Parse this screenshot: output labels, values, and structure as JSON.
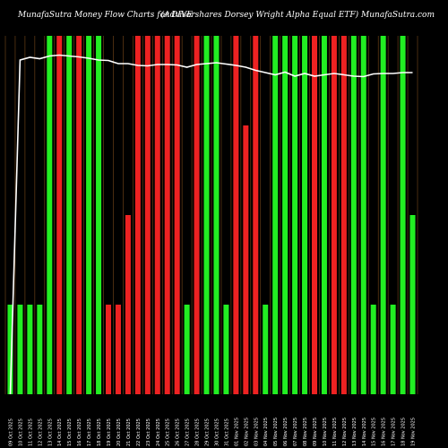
{
  "chart_data": {
    "type": "bar",
    "title_left": "MunafaSutra Money Flow Charts for DIVE",
    "title_right": "(Advisorshares Dorsey Wright Alpha Equal ETF) MunafaSutra.com",
    "grid": true,
    "colors": {
      "up": "#22ee22",
      "down": "#ee2222",
      "line": "#ffffff",
      "grid": "#7a4a1a",
      "bg": "#000000"
    },
    "categories": [
      "09 Oct 2025",
      "10 Oct 2025",
      "11 Oct 2025",
      "12 Oct 2025",
      "13 Oct 2025",
      "14 Oct 2025",
      "15 Oct 2025",
      "16 Oct 2025",
      "17 Oct 2025",
      "18 Oct 2025",
      "19 Oct 2025",
      "20 Oct 2025",
      "21 Oct 2025",
      "22 Oct 2025",
      "23 Oct 2025",
      "24 Oct 2025",
      "25 Oct 2025",
      "26 Oct 2025",
      "27 Oct 2025",
      "28 Oct 2025",
      "29 Oct 2025",
      "30 Oct 2025",
      "31 Oct 2025",
      "01 Nov 2025",
      "02 Nov 2025",
      "03 Nov 2025",
      "04 Nov 2025",
      "05 Nov 2025",
      "06 Nov 2025",
      "07 Nov 2025",
      "08 Nov 2025",
      "09 Nov 2025",
      "10 Nov 2025",
      "11 Nov 2025",
      "12 Nov 2025",
      "13 Nov 2025",
      "14 Nov 2025",
      "15 Nov 2025",
      "16 Nov 2025",
      "17 Nov 2025",
      "18 Nov 2025",
      "19 Nov 2025"
    ],
    "series": [
      {
        "values": [
          1,
          1,
          1,
          1,
          4,
          4,
          4,
          4,
          4,
          4,
          1,
          1,
          2,
          4,
          4,
          4,
          4,
          4,
          1,
          4,
          4,
          4,
          1,
          4,
          3,
          4,
          1,
          4,
          4,
          4,
          4,
          4,
          4,
          4,
          4,
          4,
          4,
          1,
          4,
          1,
          4,
          2
        ],
        "colors": [
          "up",
          "up",
          "up",
          "up",
          "up",
          "down",
          "up",
          "down",
          "up",
          "up",
          "down",
          "down",
          "down",
          "down",
          "down",
          "down",
          "down",
          "down",
          "up",
          "down",
          "up",
          "up",
          "up",
          "down",
          "down",
          "down",
          "up",
          "up",
          "up",
          "up",
          "up",
          "down",
          "up",
          "down",
          "down",
          "up",
          "up",
          "up",
          "up",
          "up",
          "up",
          "up"
        ]
      },
      {
        "values": [
          0,
          74.6,
          75.2,
          74.9,
          75.5,
          75.7,
          75.5,
          75.3,
          75.0,
          74.6,
          74.5,
          73.8,
          73.8,
          73.4,
          73.3,
          73.6,
          73.6,
          73.5,
          73.0,
          73.6,
          73.8,
          74.0,
          73.7,
          73.4,
          73.0,
          72.3,
          71.8,
          71.3,
          71.9,
          71.0,
          71.6,
          71.0,
          71.3,
          71.6,
          71.3,
          71.0,
          70.9,
          71.5,
          71.6,
          71.6,
          71.8,
          71.8
        ]
      }
    ],
    "ylim": [
      0,
      4
    ]
  }
}
